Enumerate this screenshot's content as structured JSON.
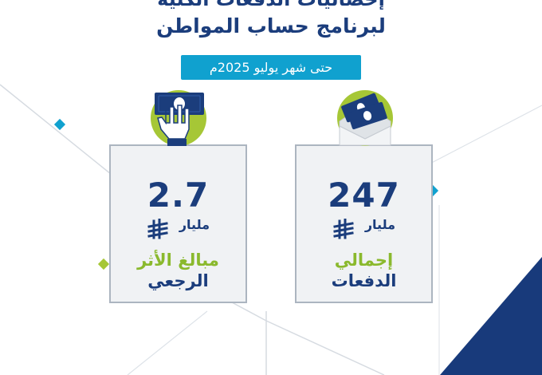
{
  "header": {
    "title_line_1": "إحصائيات الدفعات الكلية",
    "title_line_2": "لبرنامج حساب المواطن",
    "date_label": "حتى شهر يوليو 2025م"
  },
  "cards": [
    {
      "value": "247",
      "unit": "مليار",
      "label_line_1": "إجمالي",
      "label_line_2": "الدفعات",
      "icon": "envelope-cash-icon"
    },
    {
      "value": "2.7",
      "unit": "مليار",
      "label_line_1": "مبالغ الأثر",
      "label_line_2": "الرجعي",
      "icon": "hand-cash-icon"
    }
  ],
  "colors": {
    "primary": "#1b3d7c",
    "accent_blue": "#10a1cf",
    "accent_green": "#a6c736",
    "card_bg": "#f0f2f4",
    "card_border": "#acb5c0"
  }
}
